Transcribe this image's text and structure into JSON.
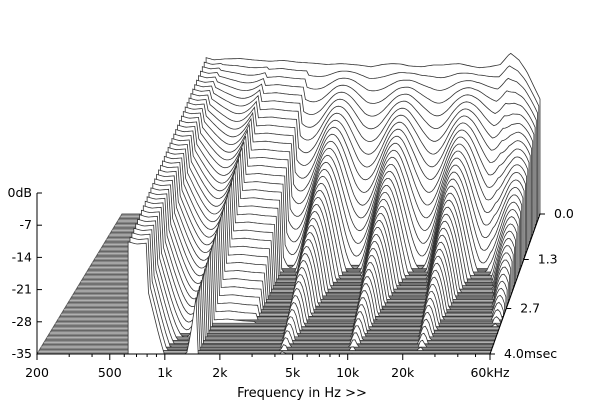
{
  "chart_data": {
    "type": "area",
    "subtype": "cumulative-spectral-decay-waterfall",
    "title": "",
    "xlabel": "Frequency in Hz >>",
    "ylabel": "",
    "x_scale": "log",
    "xlim_hz": [
      200,
      60000
    ],
    "ylim_db": [
      -35,
      0
    ],
    "time_range_msec": [
      0,
      4.0
    ],
    "x_ticks": [
      {
        "value": 200,
        "label": "200"
      },
      {
        "value": 500,
        "label": "500"
      },
      {
        "value": 1000,
        "label": "1k"
      },
      {
        "value": 2000,
        "label": "2k"
      },
      {
        "value": 5000,
        "label": "5k"
      },
      {
        "value": 10000,
        "label": "10k"
      },
      {
        "value": 20000,
        "label": "20k"
      },
      {
        "value": 60000,
        "label": "60kHz"
      }
    ],
    "y_ticks": [
      {
        "value": 0,
        "label": "0dB"
      },
      {
        "value": -7,
        "label": "-7"
      },
      {
        "value": -14,
        "label": "-14"
      },
      {
        "value": -21,
        "label": "-21"
      },
      {
        "value": -28,
        "label": "-28"
      },
      {
        "value": -35,
        "label": "-35"
      }
    ],
    "time_ticks": [
      {
        "value": 0.0,
        "label": "0.0"
      },
      {
        "value": 1.3,
        "label": "1.3"
      },
      {
        "value": 2.7,
        "label": "2.7"
      },
      {
        "value": 4.0,
        "label": "4.0msec"
      }
    ],
    "initial_response": {
      "freq_hz": [
        630,
        700,
        800,
        1000,
        1200,
        1500,
        1800,
        2200,
        2700,
        3300,
        4000,
        5000,
        6000,
        7000,
        8000,
        9000,
        10000,
        12000,
        14000,
        16000,
        18000,
        20000,
        23000,
        26000,
        30000,
        35000,
        40000,
        45000,
        50000,
        60000
      ],
      "level_db": [
        -1,
        -1.5,
        -1.3,
        -1.2,
        -1.5,
        -1.8,
        -1.6,
        -2,
        -2.2,
        -2.5,
        -2.3,
        -2.6,
        -3,
        -2.5,
        -2.3,
        -2.4,
        -2.8,
        -3,
        -2.6,
        -2.6,
        -2.4,
        -2.3,
        -2.8,
        -3.2,
        -3,
        -2.5,
        0,
        -1.5,
        -4,
        -10
      ]
    },
    "grid": false,
    "legend": "none"
  }
}
